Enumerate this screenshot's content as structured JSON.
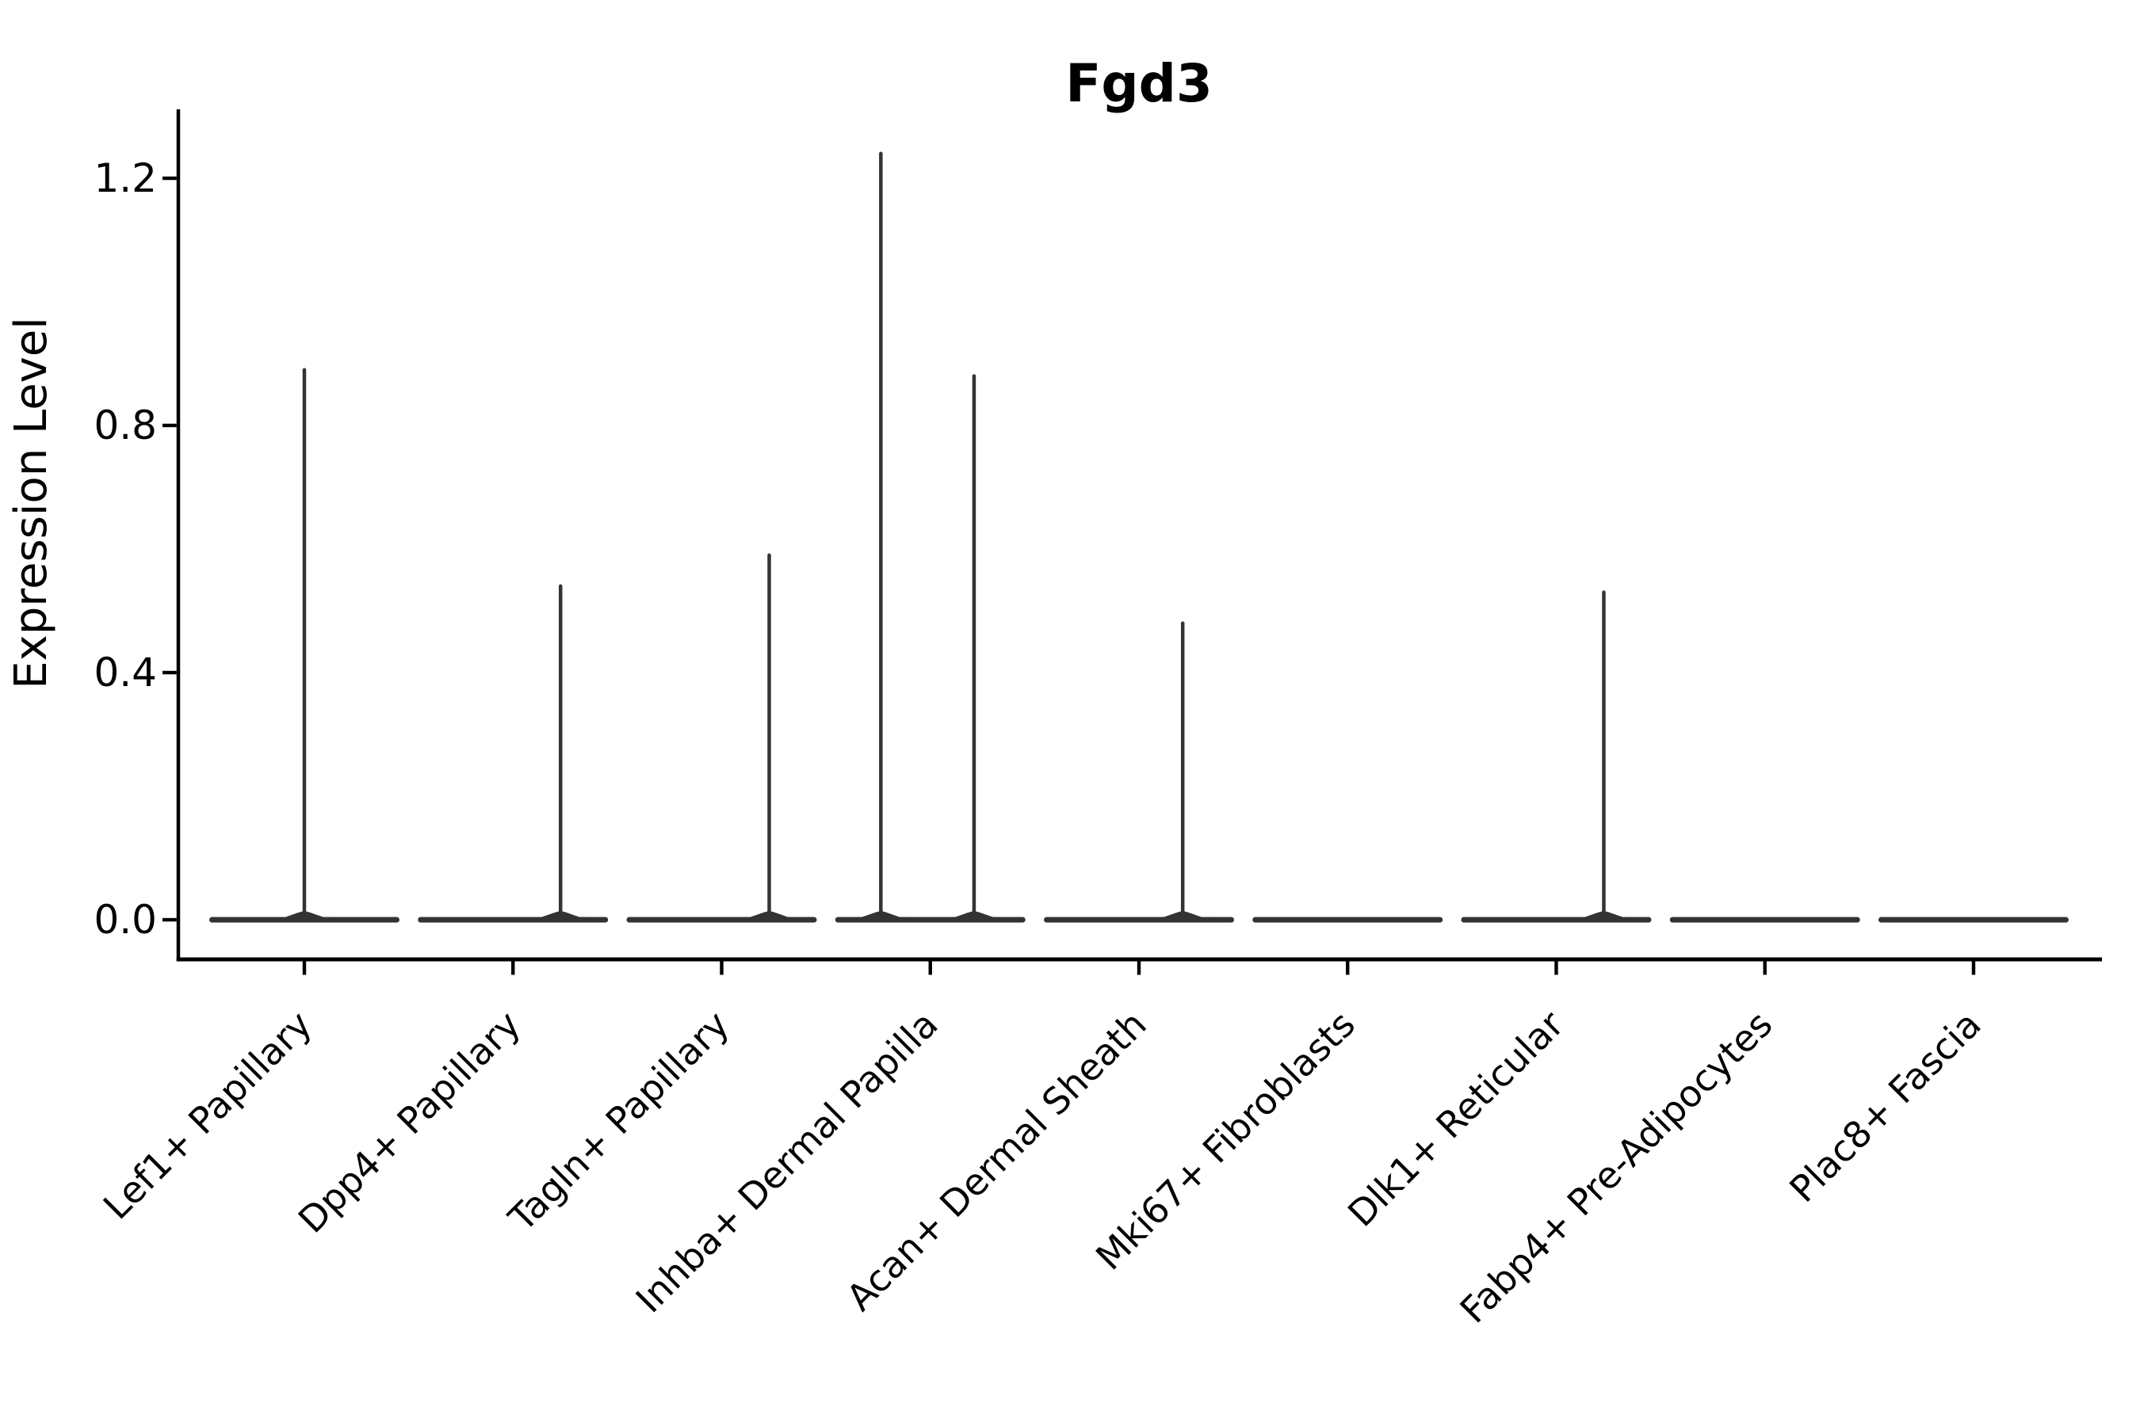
{
  "title": "Fgd3",
  "y_axis_label": "Expression Level",
  "chart_data": {
    "type": "violin",
    "title": "Fgd3",
    "xlabel": "",
    "ylabel": "Expression Level",
    "ytick_labels": [
      "0.0",
      "0.4",
      "0.8",
      "1.2"
    ],
    "ytick_values": [
      0.0,
      0.4,
      0.8,
      1.2
    ],
    "ylim": [
      -0.07,
      1.33
    ],
    "grid": false,
    "legend_position": "none",
    "categories": [
      "Lef1+ Papillary",
      "Dpp4+ Papillary",
      "Tagln+ Papillary",
      "Inhba+ Dermal Papilla",
      "Acan+ Dermal Sheath",
      "Mki67+ Fibroblasts",
      "Dlk1+ Reticular",
      "Fabp4+ Pre-Adipocytes",
      "Plac8+ Fascia"
    ],
    "max_values": [
      0.89,
      0.54,
      0.59,
      1.24,
      0.48,
      0,
      0.53,
      0,
      0
    ],
    "violins": [
      {
        "category": "Lef1+ Papillary",
        "baseline_value": 0,
        "spikes": [
          {
            "value": 0.89,
            "offset_frac": 0.0
          }
        ]
      },
      {
        "category": "Dpp4+ Papillary",
        "baseline_value": 0,
        "spikes": [
          {
            "value": 0.54,
            "offset_frac": 0.25
          }
        ]
      },
      {
        "category": "Tagln+ Papillary",
        "baseline_value": 0,
        "spikes": [
          {
            "value": 0.59,
            "offset_frac": 0.25
          }
        ]
      },
      {
        "category": "Inhba+ Dermal Papilla",
        "baseline_value": 0,
        "spikes": [
          {
            "value": 1.24,
            "offset_frac": -0.26
          },
          {
            "value": 0.88,
            "offset_frac": 0.23
          }
        ]
      },
      {
        "category": "Acan+ Dermal Sheath",
        "baseline_value": 0,
        "spikes": [
          {
            "value": 0.48,
            "offset_frac": 0.23
          }
        ]
      },
      {
        "category": "Mki67+ Fibroblasts",
        "baseline_value": 0,
        "spikes": []
      },
      {
        "category": "Dlk1+ Reticular",
        "baseline_value": 0,
        "spikes": [
          {
            "value": 0.53,
            "offset_frac": 0.25
          }
        ]
      },
      {
        "category": "Fabp4+ Pre-Adipocytes",
        "baseline_value": 0,
        "spikes": []
      },
      {
        "category": "Plac8+ Fascia",
        "baseline_value": 0,
        "spikes": []
      }
    ],
    "colors": {
      "violin": "#333333",
      "axis": "#000000",
      "text": "#000000",
      "background": "#ffffff"
    }
  }
}
